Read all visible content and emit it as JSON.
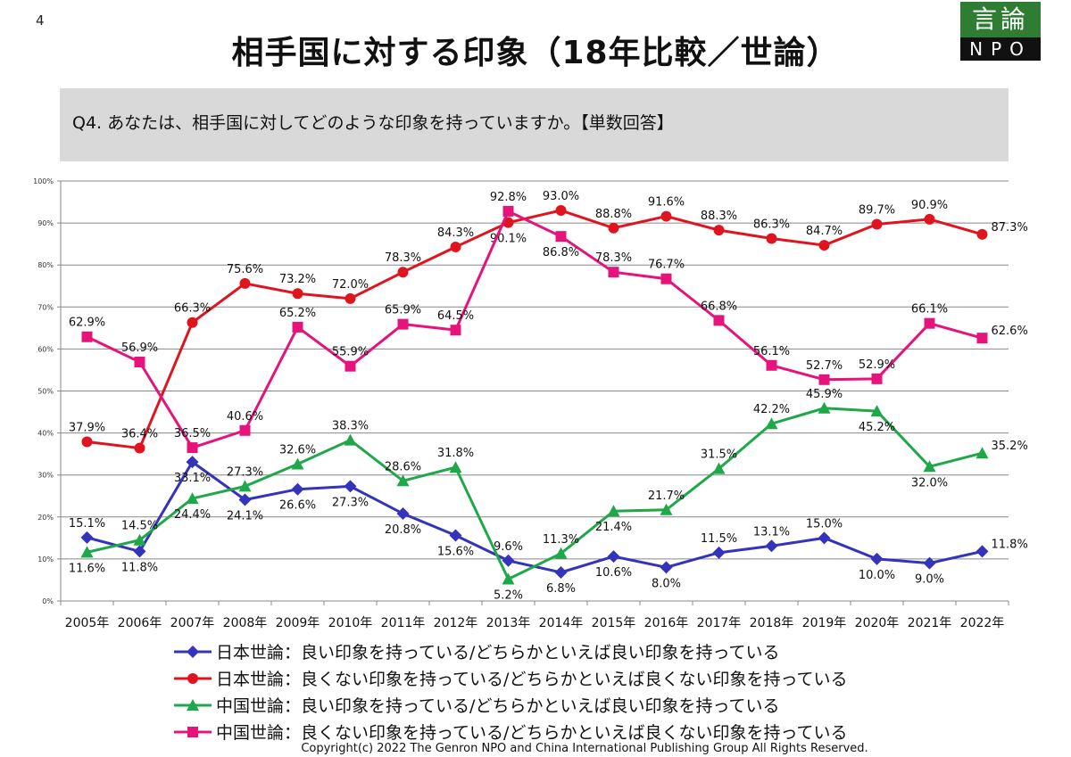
{
  "page_number": "4",
  "title": "相手国に対する印象（18年比較／世論）",
  "logo": {
    "top": "言論",
    "bottom": "NPO"
  },
  "question": "Q4. あなたは、相手国に対してどのような印象を持っていますか。【単数回答】",
  "copyright": "Copyright(c) 2022 The Genron NPO and China International Publishing Group All Rights Reserved.",
  "chart_data": {
    "type": "line",
    "categories": [
      "2005年",
      "2006年",
      "2007年",
      "2008年",
      "2009年",
      "2010年",
      "2011年",
      "2012年",
      "2013年",
      "2014年",
      "2015年",
      "2016年",
      "2017年",
      "2018年",
      "2019年",
      "2020年",
      "2021年",
      "2022年"
    ],
    "ylim": [
      0,
      100
    ],
    "yticks": [
      "0%",
      "10%",
      "20%",
      "30%",
      "40%",
      "50%",
      "60%",
      "70%",
      "80%",
      "90%",
      "100%"
    ],
    "grid": true,
    "legend_placement": "bottom",
    "series": [
      {
        "name": "日本世論：良い印象を持っている/どちらかといえば良い印象を持っている",
        "color": "#3333bb",
        "marker": "diamond",
        "values": [
          15.1,
          11.8,
          33.1,
          24.1,
          26.6,
          27.3,
          20.8,
          15.6,
          9.6,
          6.8,
          10.6,
          8.0,
          11.5,
          13.1,
          15.0,
          10.0,
          9.0,
          11.8
        ]
      },
      {
        "name": "日本世論：良くない印象を持っている/どちらかといえば良くない印象を持っている",
        "color": "#e0141e",
        "marker": "circle",
        "values": [
          37.9,
          36.4,
          66.3,
          75.6,
          73.2,
          72.0,
          78.3,
          84.3,
          90.1,
          93.0,
          88.8,
          91.6,
          88.3,
          86.3,
          84.7,
          89.7,
          90.9,
          87.3
        ]
      },
      {
        "name": "中国世論：良い印象を持っている/どちらかといえば良い印象を持っている",
        "color": "#1fa84a",
        "marker": "triangle",
        "values": [
          11.6,
          14.5,
          24.4,
          27.3,
          32.6,
          38.3,
          28.6,
          31.8,
          5.2,
          11.3,
          21.4,
          21.7,
          31.5,
          42.2,
          45.9,
          45.2,
          32.0,
          35.2
        ]
      },
      {
        "name": "中国世論：良くない印象を持っている/どちらかといえば良くない印象を持っている",
        "color": "#e5137a",
        "marker": "square",
        "values": [
          62.9,
          56.9,
          36.5,
          40.6,
          65.2,
          55.9,
          65.9,
          64.5,
          92.8,
          86.8,
          78.3,
          76.7,
          66.8,
          56.1,
          52.7,
          52.9,
          66.1,
          62.6
        ]
      }
    ]
  }
}
